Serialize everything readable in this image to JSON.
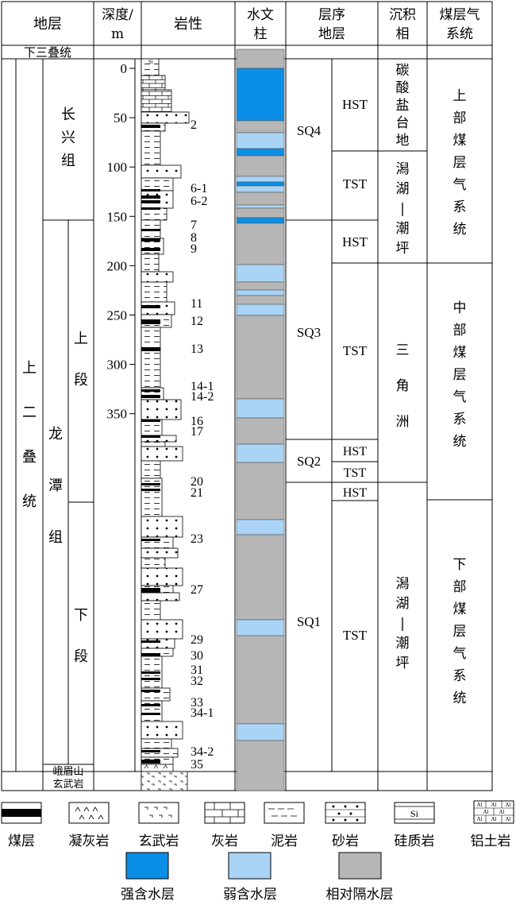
{
  "headers": {
    "formation": "地层",
    "depth": "深度/",
    "depth_unit": "m",
    "lithology": "岩性",
    "hydro_1": "水文",
    "hydro_2": "柱",
    "sequence_1": "层序",
    "sequence_2": "地层",
    "facies_1": "沉积",
    "facies_2": "相",
    "gas_1": "煤层气",
    "gas_2": "系统"
  },
  "strata": {
    "lower_triassic": "下三叠统",
    "upper_permian": [
      "上",
      "二",
      "叠",
      "统"
    ],
    "changxing": [
      "长",
      "兴",
      "组"
    ],
    "longtan": [
      "龙",
      "潭",
      "组"
    ],
    "upper_member": [
      "上",
      "段"
    ],
    "lower_member": [
      "下",
      "段"
    ],
    "emeishan": [
      "峨眉山",
      "玄武岩"
    ]
  },
  "depth_ticks": [
    "0",
    "50",
    "100",
    "150",
    "200",
    "250",
    "300",
    "350"
  ],
  "coal_labels": [
    "2",
    "6-1",
    "6-2",
    "7",
    "8",
    "9",
    "11",
    "12",
    "13",
    "14-1",
    "14-2",
    "16",
    "17",
    "20",
    "21",
    "23",
    "27",
    "29",
    "30",
    "31",
    "32",
    "33",
    "34-1",
    "34-2",
    "35"
  ],
  "hydro_colors": {
    "strong": "#0a8ee6",
    "weak": "#a9d4f5",
    "aquitard": "#b6b6b6"
  },
  "sequence": {
    "sq4": "SQ4",
    "sq3": "SQ3",
    "sq2": "SQ2",
    "sq1": "SQ1",
    "sq4_hst": "HST",
    "sq4_tst": "TST",
    "sq3_hst": "HST",
    "sq3_tst": "TST",
    "sq2_hst": "HST",
    "sq2_tst": "TST",
    "sq1_hst": "HST",
    "sq1_tst": "TST"
  },
  "facies": {
    "carbonate": [
      "碳",
      "酸",
      "盐",
      "台",
      "地"
    ],
    "lagoon_tidal_upper": [
      "潟",
      "湖",
      "|",
      "潮",
      "坪"
    ],
    "delta": [
      "三",
      "角",
      "洲"
    ],
    "lagoon_tidal_lower": [
      "潟",
      "湖",
      "|",
      "潮",
      "坪"
    ]
  },
  "gas_systems": {
    "upper": [
      "上",
      "部",
      "煤",
      "层",
      "气",
      "系",
      "统"
    ],
    "middle": [
      "中",
      "部",
      "煤",
      "层",
      "气",
      "系",
      "统"
    ],
    "lower": [
      "下",
      "部",
      "煤",
      "层",
      "气",
      "系",
      "统"
    ]
  },
  "legend": {
    "coal": "煤层",
    "tuff": "凝灰岩",
    "basalt": "玄武岩",
    "limestone": "灰岩",
    "mudstone": "泥岩",
    "sandstone": "砂岩",
    "siliceous": "硅质岩",
    "siliceous_symbol": "Si",
    "bauxite": "铝土岩",
    "bauxite_symbol": "Al",
    "strong": "强含水层",
    "weak": "弱含水层",
    "aquitard": "相对隔水层"
  }
}
